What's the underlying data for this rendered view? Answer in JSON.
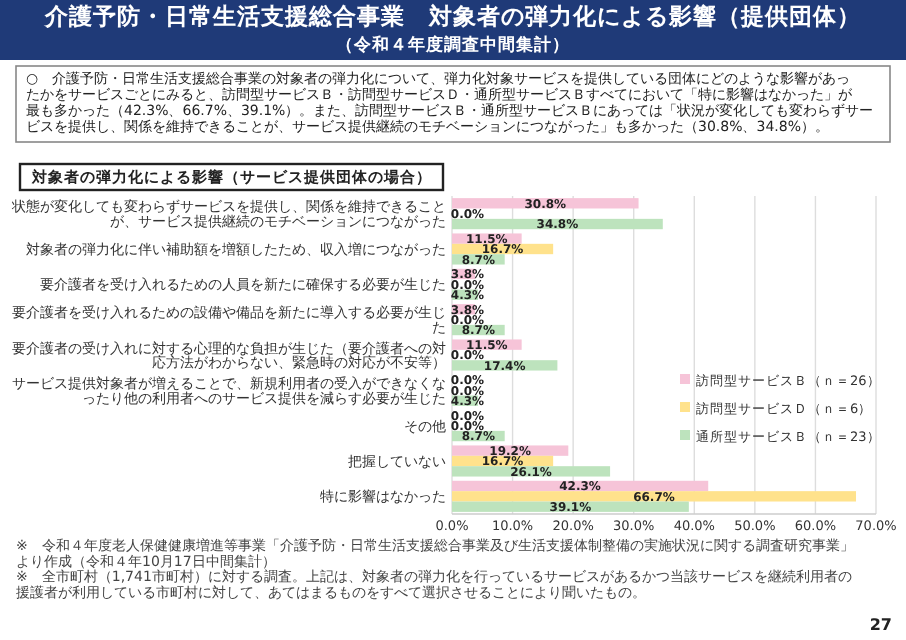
{
  "chart_data": {
    "type": "bar",
    "orientation": "horizontal",
    "title": "介護予防・日常生活支援総合事業　対象者の弾力化による影響（提供団体）",
    "subtitle": "（令和４年度調査中間集計）",
    "annotations": [
      "○　介護予防・日常生活支援総合事業の対象者の弾力化について、弾力化対象サービスを提供している団体にどのような影響があったかをサービスごとにみると、訪問型サービスＢ・訪問型サービスＤ・通所型サービスＢすべてにおいて「特に影響はなかった」が最も多かった（42.3%、66.7%、39.1%）。また、訪問型サービスＢ・通所型サービスＢにあっては「状況が変化しても変わらずサービスを提供し、関係を維持できることが、サービス提供継続のモチベーションにつながった」も多かった（30.8%、34.8%）。",
      "対象者の弾力化による影響（サービス提供団体の場合）",
      "※　令和４年度老人保健健康増進等事業「介護予防・日常生活支援総合事業及び生活支援体制整備の実施状況に関する調査研究事業」より作成（令和４年10月17日中間集計）",
      "※　全市町村（1,741市町村）に対する調査。上記は、対象者の弾力化を行っているサービスがあるかつ当該サービスを継続利用者の援護者が利用している市町村に対して、あてはまるものをすべて選択させることにより聞いたもの。",
      "27"
    ],
    "categories": [
      "状態が変化しても変わらずサービスを提供し、関係を維持できることが、サービス提供継続のモチベーションにつながった",
      "対象者の弾力化に伴い補助額を増額したため、収入増につながった",
      "要介護者を受け入れるための人員を新たに確保する必要が生じた",
      "要介護者を受け入れるための設備や備品を新たに導入する必要が生じた",
      "要介護者の受け入れに対する心理的な負担が生じた（要介護者への対応方法がわからない、緊急時の対応が不安等）",
      "サービス提供対象者が増えることで、新規利用者の受入ができなくなったり他の利用者へのサービス提供を減らす必要が生じた",
      "その他",
      "把握していない",
      "特に影響はなかった"
    ],
    "series": [
      {
        "name": "訪問型サービスＢ（ｎ＝26）",
        "color": "#f6c4d8",
        "values": [
          30.8,
          11.5,
          3.8,
          3.8,
          11.5,
          0.0,
          0.0,
          19.2,
          42.3
        ],
        "value_labels": [
          "30.8%",
          "11.5%",
          "3.8%",
          "3.8%",
          "11.5%",
          "0.0%",
          "0.0%",
          "19.2%",
          "42.3%"
        ]
      },
      {
        "name": "訪問型サービスＤ（ｎ＝6）",
        "color": "#ffe28c",
        "values": [
          0.0,
          16.7,
          0.0,
          0.0,
          0.0,
          0.0,
          0.0,
          16.7,
          66.7
        ],
        "value_labels": [
          "0.0%",
          "16.7%",
          "0.0%",
          "0.0%",
          "0.0%",
          "0.0%",
          "0.0%",
          "16.7%",
          "66.7%"
        ]
      },
      {
        "name": "通所型サービスＢ（ｎ＝23）",
        "color": "#bde3bd",
        "values": [
          34.8,
          8.7,
          4.3,
          8.7,
          17.4,
          4.3,
          8.7,
          26.1,
          39.1
        ],
        "value_labels": [
          "34.8%",
          "8.7%",
          "4.3%",
          "8.7%",
          "17.4%",
          "4.3%",
          "8.7%",
          "26.1%",
          "39.1%"
        ]
      }
    ],
    "xlim": [
      0,
      70
    ],
    "xticks": [
      {
        "value": 0,
        "label": "0.0%"
      },
      {
        "value": 10,
        "label": "10.0%"
      },
      {
        "value": 20,
        "label": "20.0%"
      },
      {
        "value": 30,
        "label": "30.0%"
      },
      {
        "value": 40,
        "label": "40.0%"
      },
      {
        "value": 50,
        "label": "50.0%"
      },
      {
        "value": 60,
        "label": "60.0%"
      },
      {
        "value": 70,
        "label": "70.0%"
      }
    ],
    "grid": "x",
    "legend": "right"
  }
}
